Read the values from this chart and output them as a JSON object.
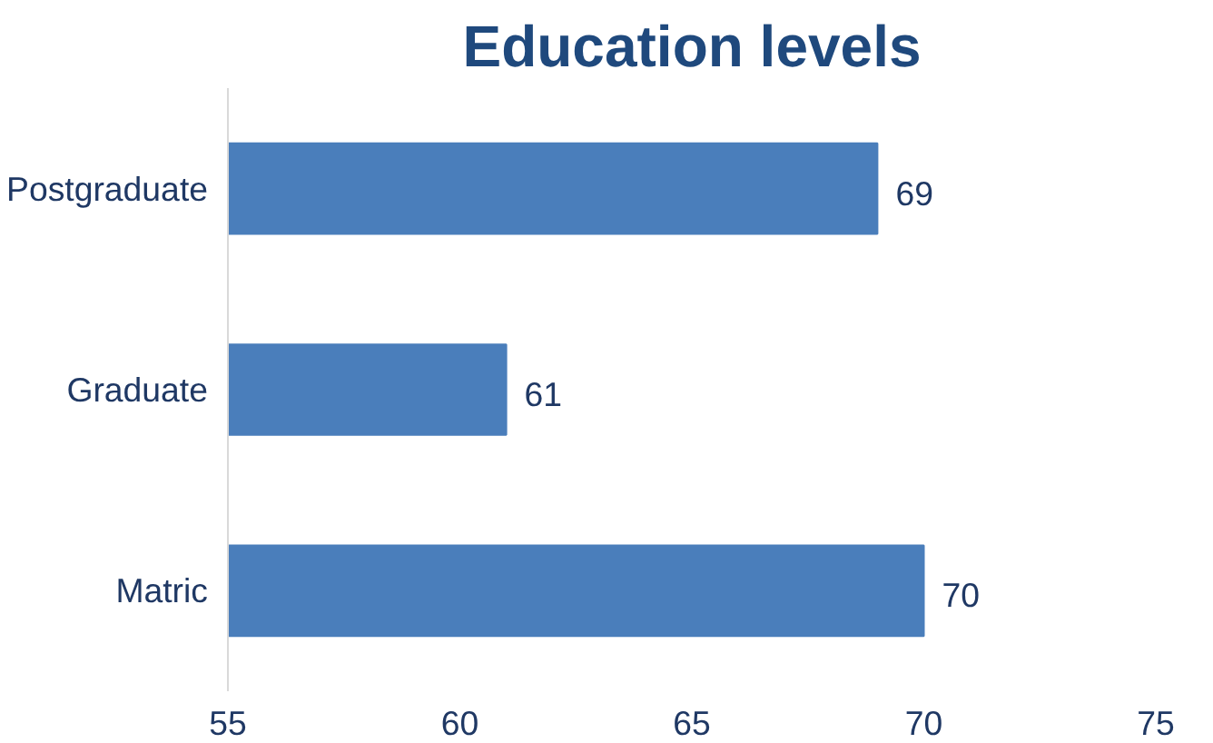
{
  "chart_data": {
    "type": "bar",
    "orientation": "horizontal",
    "title": "Education levels",
    "categories": [
      "Postgraduate",
      "Graduate",
      "Matric"
    ],
    "values": [
      69,
      61,
      70
    ],
    "color": "#4a7ebb",
    "xlim": [
      55,
      75
    ],
    "xticks": [
      55,
      60,
      65,
      70,
      75
    ],
    "grid": false,
    "data_labels": true
  }
}
